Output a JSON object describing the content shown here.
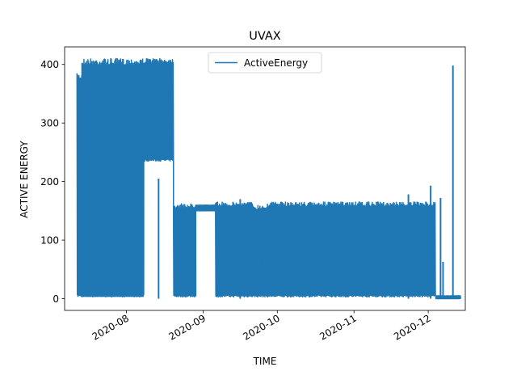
{
  "chart_data": {
    "type": "line",
    "title": "UVAX",
    "xlabel": "TIME",
    "ylabel": "ACTIVE ENERGY",
    "legend": {
      "entries": [
        "ActiveEnergy"
      ],
      "placement": "top-center"
    },
    "series_color": "#1f77b4",
    "xlim": [
      "2020-07-07",
      "2020-12-16"
    ],
    "ylim": [
      -20,
      430
    ],
    "x_ticks": [
      "2020-08",
      "2020-09",
      "2020-10",
      "2020-11",
      "2020-12"
    ],
    "y_ticks": [
      0,
      100,
      200,
      300,
      400
    ],
    "series": [
      {
        "name": "ActiveEnergy",
        "segments": [
          {
            "start": "2020-07-12",
            "end": "2020-07-14",
            "low": 3,
            "high": 385
          },
          {
            "start": "2020-07-14",
            "end": "2020-08-08",
            "low": 3,
            "high": 410,
            "base": 245
          },
          {
            "start": "2020-08-08",
            "end": "2020-08-20",
            "low": 235,
            "high": 410
          },
          {
            "start": "2020-08-20",
            "end": "2020-08-29",
            "low": 3,
            "high": 162
          },
          {
            "start": "2020-08-29",
            "end": "2020-09-06",
            "low": 150,
            "high": 160
          },
          {
            "start": "2020-09-06",
            "end": "2020-09-21",
            "low": 3,
            "high": 165
          },
          {
            "start": "2020-09-21",
            "end": "2020-09-27",
            "low": 3,
            "high": 160
          },
          {
            "start": "2020-09-27",
            "end": "2020-12-04",
            "low": 3,
            "high": 165
          },
          {
            "start": "2020-12-04",
            "end": "2020-12-14",
            "low": 0,
            "high": 5
          }
        ],
        "spikes": [
          {
            "date": "2020-08-14",
            "value": 205
          },
          {
            "date": "2020-09-16",
            "value": 170
          },
          {
            "date": "2020-11-23",
            "value": 178
          },
          {
            "date": "2020-12-02",
            "value": 193
          },
          {
            "date": "2020-12-06",
            "value": 172
          },
          {
            "date": "2020-12-07",
            "value": 63
          },
          {
            "date": "2020-12-11",
            "value": 398
          }
        ]
      }
    ],
    "grid": false
  }
}
